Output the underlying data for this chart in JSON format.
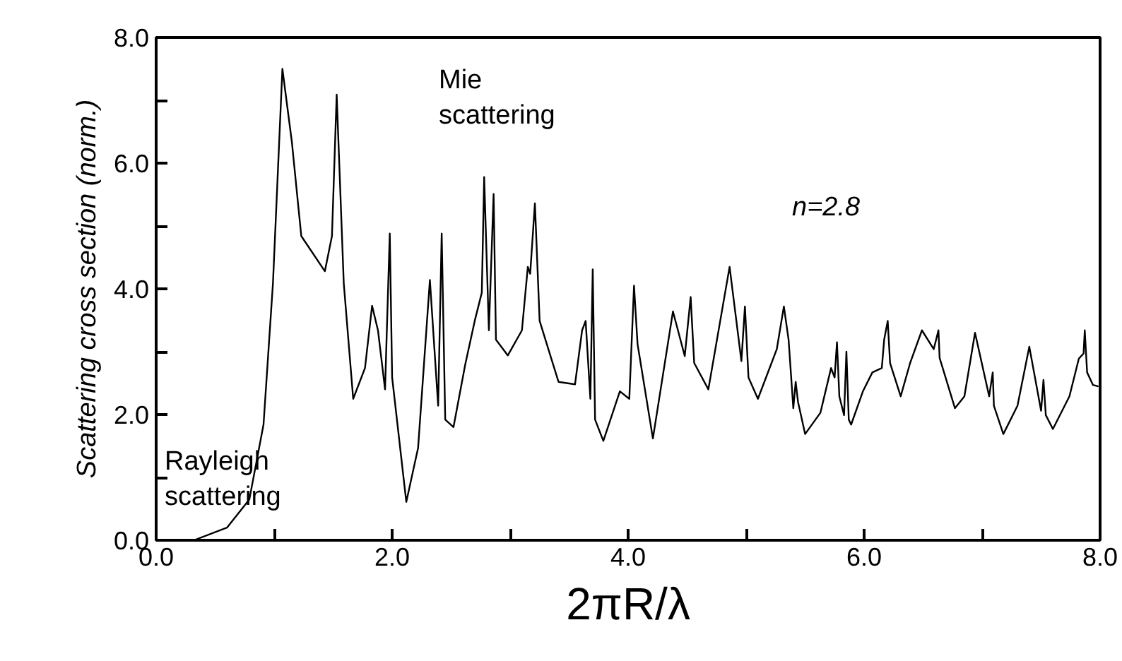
{
  "chart_data": {
    "type": "line",
    "xlabel": "2πR/λ",
    "ylabel": "Scattering cross section (norm.)",
    "xlim": [
      0,
      8
    ],
    "ylim": [
      0,
      8
    ],
    "xticks": [
      {
        "value": 0,
        "label": "0.0"
      },
      {
        "value": 1,
        "label": null
      },
      {
        "value": 2,
        "label": "2.0"
      },
      {
        "value": 3,
        "label": null
      },
      {
        "value": 4,
        "label": "4.0"
      },
      {
        "value": 5,
        "label": null
      },
      {
        "value": 6,
        "label": "6.0"
      },
      {
        "value": 7,
        "label": null
      },
      {
        "value": 8,
        "label": "8.0"
      }
    ],
    "yticks": [
      {
        "value": 0,
        "label": "0.0"
      },
      {
        "value": 1,
        "label": null
      },
      {
        "value": 2,
        "label": "2.0"
      },
      {
        "value": 3,
        "label": null
      },
      {
        "value": 4,
        "label": "4.0"
      },
      {
        "value": 5,
        "label": null
      },
      {
        "value": 6,
        "label": "6.0"
      },
      {
        "value": 7,
        "label": null
      },
      {
        "value": 8,
        "label": "8.0"
      }
    ],
    "grid": false,
    "marker": "none",
    "line_style": "solid",
    "annotations": [
      "Rayleigh\nscattering",
      "Mie\nscattering",
      "n=2.8"
    ],
    "series": [
      {
        "color": "#000000",
        "x": [
          0.32,
          0.6,
          0.79,
          0.91,
          0.99,
          1.07,
          1.15,
          1.23,
          1.43,
          1.49,
          1.53,
          1.59,
          1.67,
          1.77,
          1.83,
          1.88,
          1.94,
          1.98,
          2.0,
          2.12,
          2.22,
          2.32,
          2.39,
          2.42,
          2.45,
          2.52,
          2.62,
          2.7,
          2.76,
          2.78,
          2.82,
          2.86,
          2.88,
          2.98,
          3.1,
          3.15,
          3.17,
          3.21,
          3.25,
          3.41,
          3.55,
          3.61,
          3.64,
          3.68,
          3.7,
          3.72,
          3.79,
          3.93,
          4.01,
          4.05,
          4.08,
          4.21,
          4.38,
          4.48,
          4.53,
          4.56,
          4.68,
          4.86,
          4.96,
          4.99,
          5.02,
          5.1,
          5.26,
          5.32,
          5.36,
          5.4,
          5.42,
          5.44,
          5.5,
          5.63,
          5.72,
          5.75,
          5.77,
          5.79,
          5.83,
          5.85,
          5.87,
          5.89,
          5.99,
          6.07,
          6.15,
          6.17,
          6.2,
          6.22,
          6.31,
          6.39,
          6.49,
          6.59,
          6.63,
          6.64,
          6.77,
          6.85,
          6.94,
          7.06,
          7.09,
          7.1,
          7.18,
          7.3,
          7.4,
          7.5,
          7.52,
          7.54,
          7.6,
          7.74,
          7.82,
          7.86,
          7.87,
          7.89,
          7.94,
          7.98
        ],
        "values": [
          0.0,
          0.2,
          0.65,
          1.84,
          4.09,
          7.5,
          6.34,
          4.84,
          4.28,
          4.84,
          7.09,
          4.09,
          2.25,
          2.74,
          3.73,
          3.34,
          2.4,
          4.88,
          2.59,
          0.61,
          1.47,
          4.14,
          2.14,
          4.88,
          1.92,
          1.8,
          2.8,
          3.49,
          3.94,
          5.78,
          3.34,
          5.51,
          3.19,
          2.94,
          3.34,
          4.35,
          4.24,
          5.36,
          3.49,
          2.52,
          2.48,
          3.34,
          3.49,
          2.25,
          4.31,
          1.92,
          1.58,
          2.37,
          2.25,
          4.05,
          3.12,
          1.62,
          3.64,
          2.93,
          3.87,
          2.82,
          2.4,
          4.35,
          2.85,
          3.72,
          2.59,
          2.25,
          3.04,
          3.72,
          3.19,
          2.1,
          2.52,
          2.2,
          1.69,
          2.03,
          2.74,
          2.59,
          3.15,
          2.29,
          1.99,
          3.0,
          1.92,
          1.84,
          2.37,
          2.67,
          2.74,
          3.19,
          3.49,
          2.82,
          2.29,
          2.82,
          3.34,
          3.04,
          3.34,
          2.9,
          2.1,
          2.29,
          3.3,
          2.29,
          2.67,
          2.14,
          1.69,
          2.14,
          3.08,
          2.06,
          2.55,
          1.99,
          1.77,
          2.29,
          2.89,
          2.97,
          3.34,
          2.67,
          2.47,
          2.45
        ]
      }
    ]
  }
}
